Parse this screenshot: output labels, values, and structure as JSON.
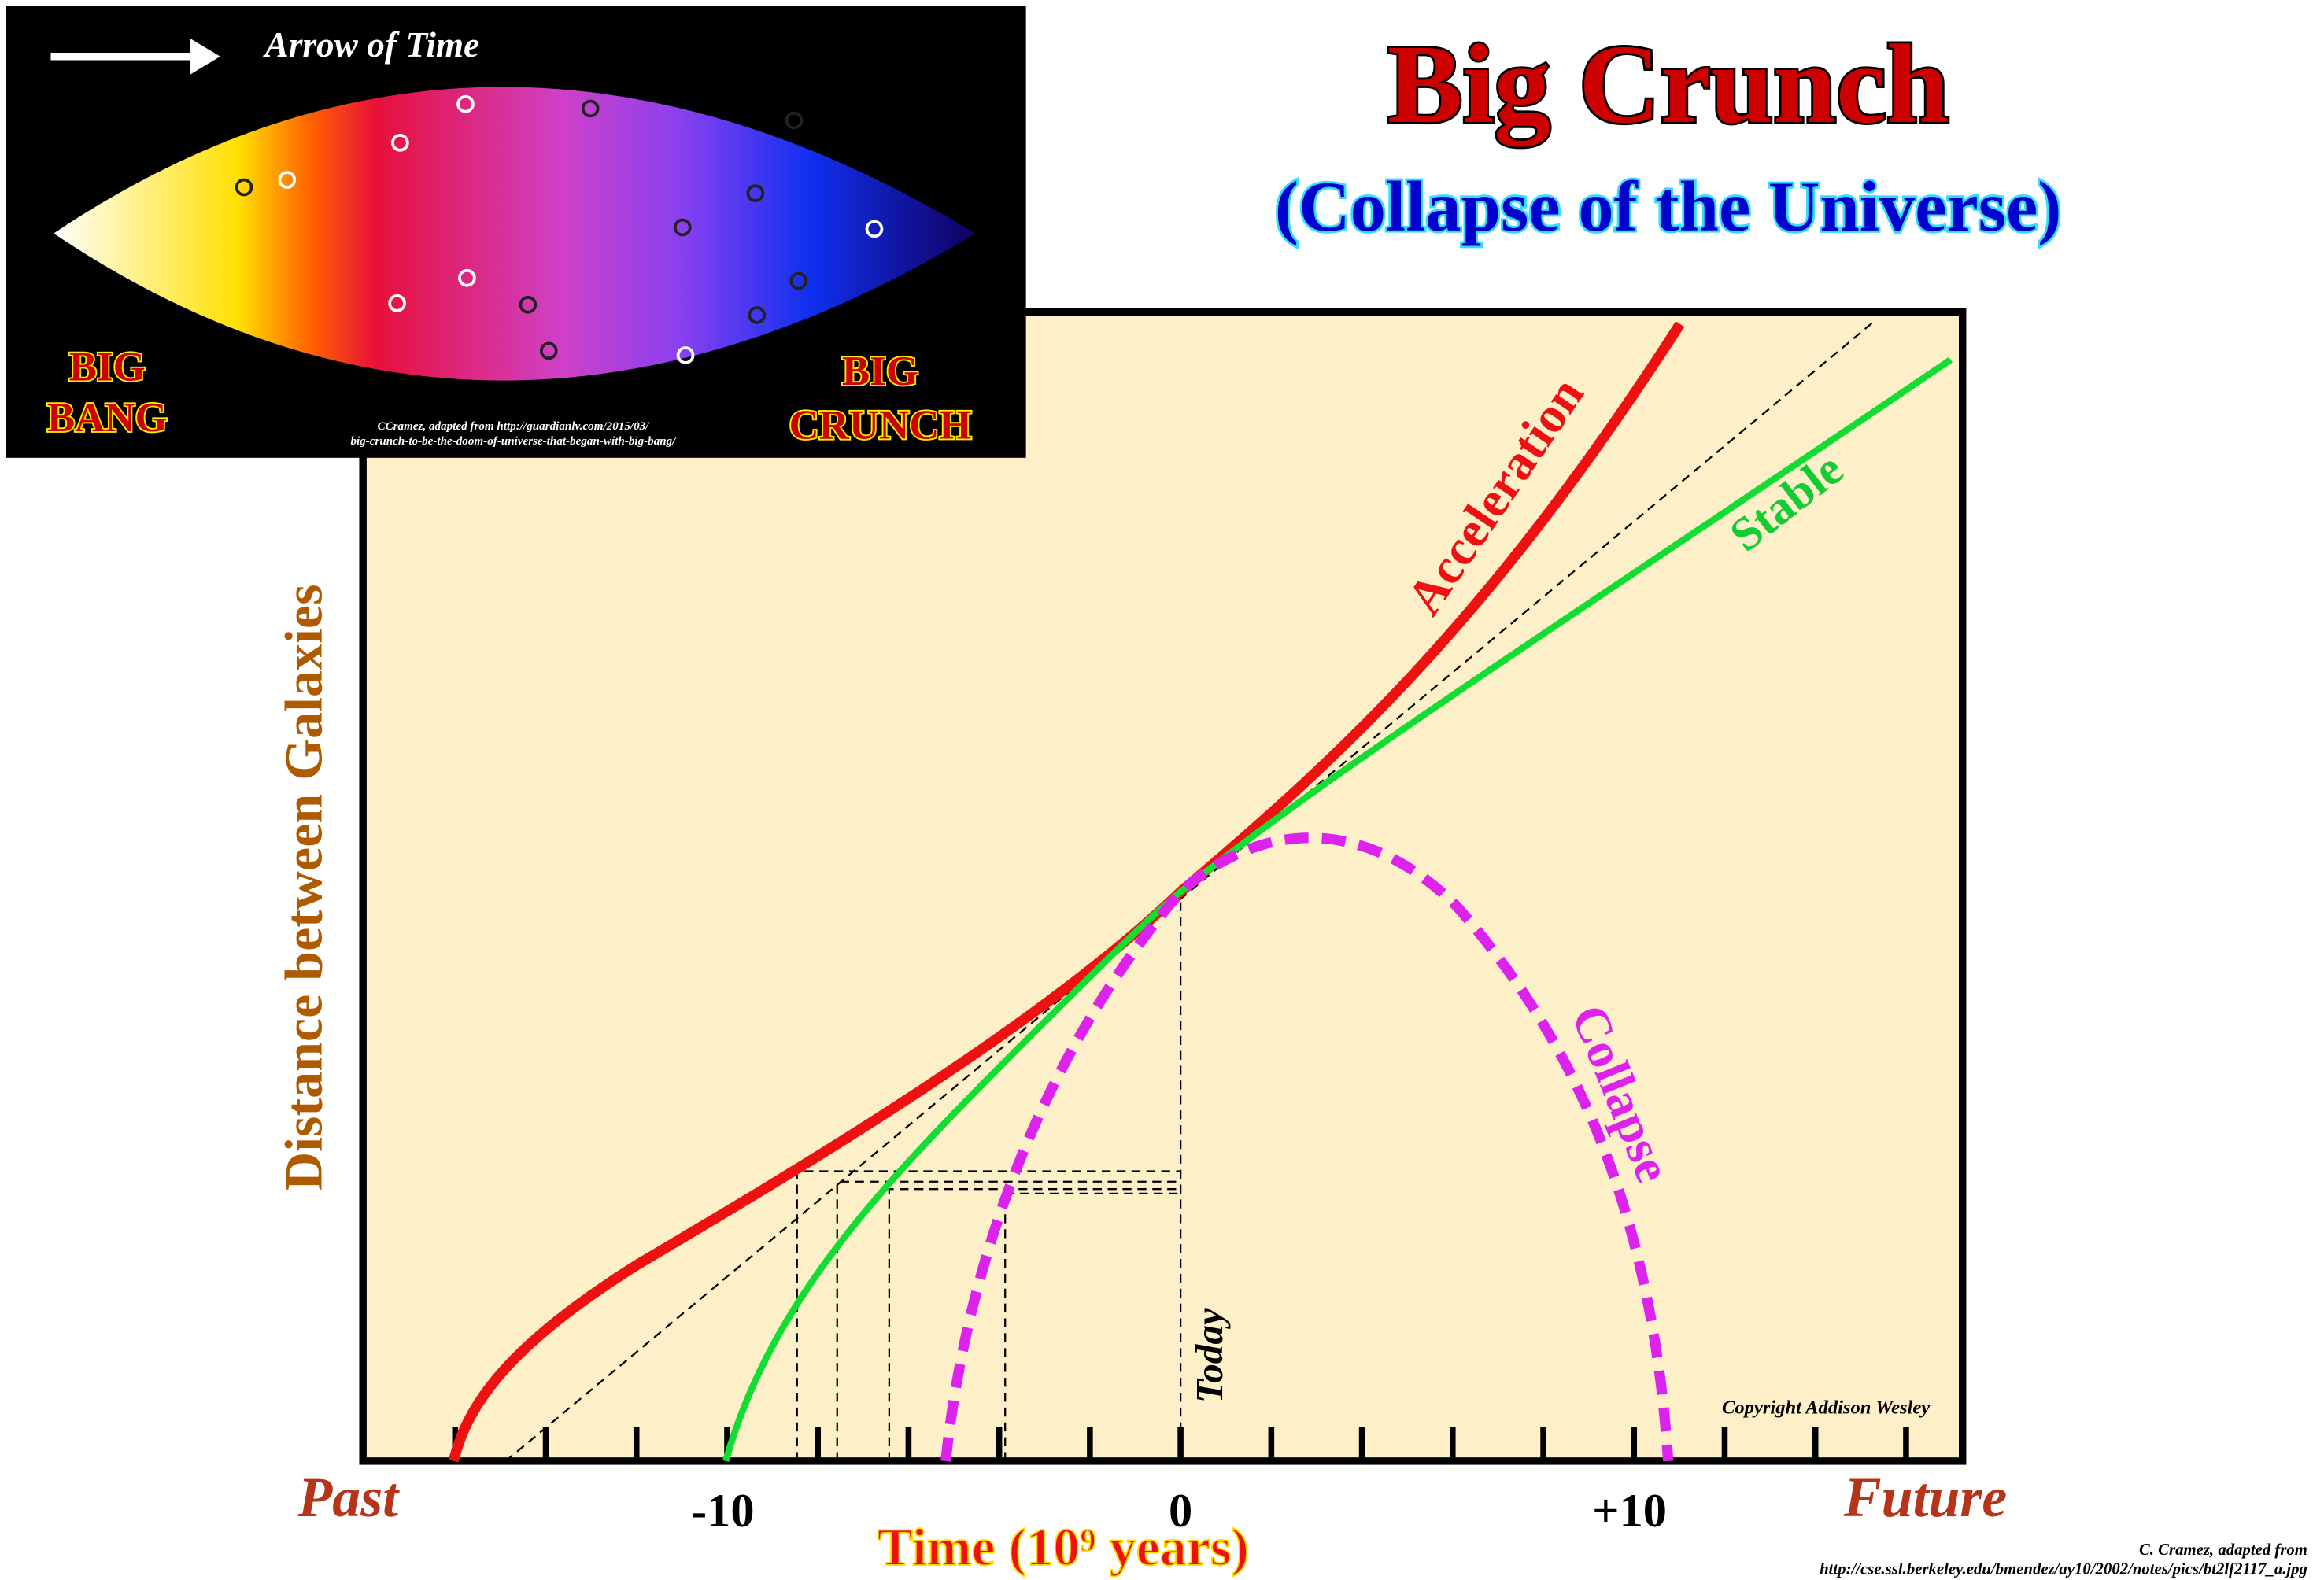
{
  "title": "Big Crunch",
  "subtitle": "(Collapse of the Universe)",
  "inset": {
    "arrow_label": "Arrow of Time",
    "left_label_1": "BIG",
    "left_label_2": "BANG",
    "right_label_1": "BIG",
    "right_label_2": "CRUNCH",
    "credit_1": "CCramez, adapted from http://guardianlv.com/2015/03/",
    "credit_2": "big-crunch-to-be-the-doom-of-universe-that-began-with-big-bang/"
  },
  "y_axis_label": "Distance between Galaxies",
  "x_axis_label": "Time (10⁹ years)",
  "x_left": "Past",
  "x_right": "Future",
  "x_tick_labels": [
    "-10",
    "0",
    "+10"
  ],
  "curve_labels": {
    "acceleration": "Acceleration",
    "stable": "Stable",
    "collapse": "Collapse"
  },
  "today_label": "Today",
  "copyright": "Copyright Addison Wesley",
  "source_1": "C. Cramez, adapted from",
  "source_2": "http://cse.ssl.berkeley.edu/bmendez/ay10/2002/notes/pics/bt2lf2117_a.jpg"
}
